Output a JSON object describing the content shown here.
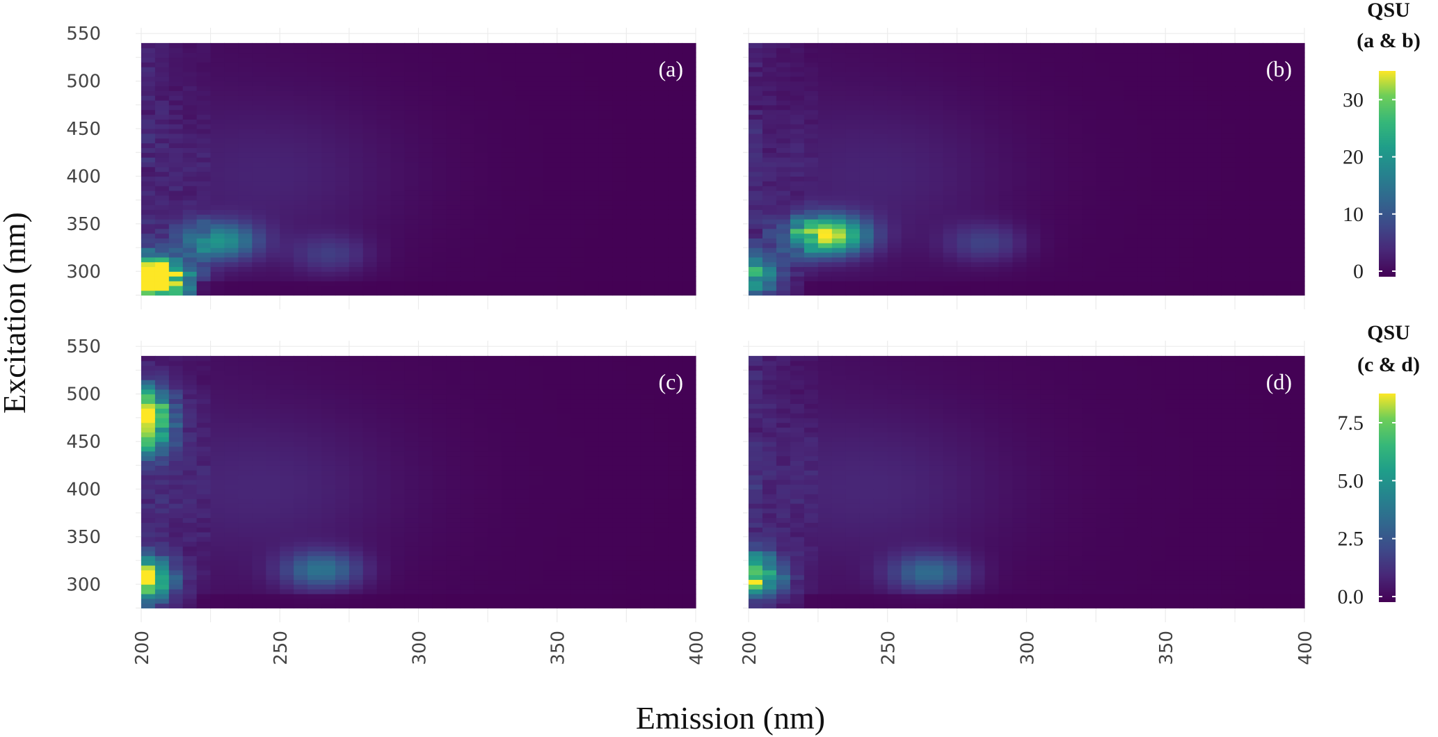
{
  "chart_data": {
    "type": "heatmap",
    "xlabel": "Emission (nm)",
    "ylabel": "Excitation (nm)",
    "xlim": [
      200,
      400
    ],
    "ylim": [
      275,
      540
    ],
    "x_ticks": [
      "200",
      "250",
      "300",
      "350",
      "400"
    ],
    "y_ticks": [
      "300",
      "350",
      "400",
      "450",
      "500",
      "550"
    ],
    "colormap": "viridis",
    "panels": [
      {
        "label": "(a)",
        "colorbar_group": "ab",
        "peaks": [
          {
            "em": 200,
            "ex": 295,
            "value": 34
          },
          {
            "em": 210,
            "ex": 290,
            "value": 24
          },
          {
            "em": 228,
            "ex": 332,
            "value": 19
          },
          {
            "em": 268,
            "ex": 318,
            "value": 6
          }
        ]
      },
      {
        "label": "(b)",
        "colorbar_group": "ab",
        "peaks": [
          {
            "em": 228,
            "ex": 338,
            "value": 35
          },
          {
            "em": 202,
            "ex": 298,
            "value": 20
          },
          {
            "em": 285,
            "ex": 330,
            "value": 7
          }
        ]
      },
      {
        "label": "(c)",
        "colorbar_group": "cd",
        "peaks": [
          {
            "em": 200,
            "ex": 305,
            "value": 8.8
          },
          {
            "em": 200,
            "ex": 485,
            "value": 8.0
          },
          {
            "em": 200,
            "ex": 455,
            "value": 6.0
          },
          {
            "em": 265,
            "ex": 315,
            "value": 3.5
          }
        ]
      },
      {
        "label": "(d)",
        "colorbar_group": "cd",
        "peaks": [
          {
            "em": 202,
            "ex": 310,
            "value": 7.2
          },
          {
            "em": 265,
            "ex": 312,
            "value": 3.2
          }
        ]
      }
    ],
    "colorbars": [
      {
        "id": "ab",
        "title_line1": "QSU",
        "title_line2": "(a & b)",
        "min": 0,
        "max": 36,
        "ticks": [
          "0",
          "10",
          "20",
          "30"
        ]
      },
      {
        "id": "cd",
        "title_line1": "QSU",
        "title_line2": "(c & d)",
        "min": 0,
        "max": 9,
        "ticks": [
          "0.0",
          "2.5",
          "5.0",
          "7.5"
        ]
      }
    ]
  }
}
